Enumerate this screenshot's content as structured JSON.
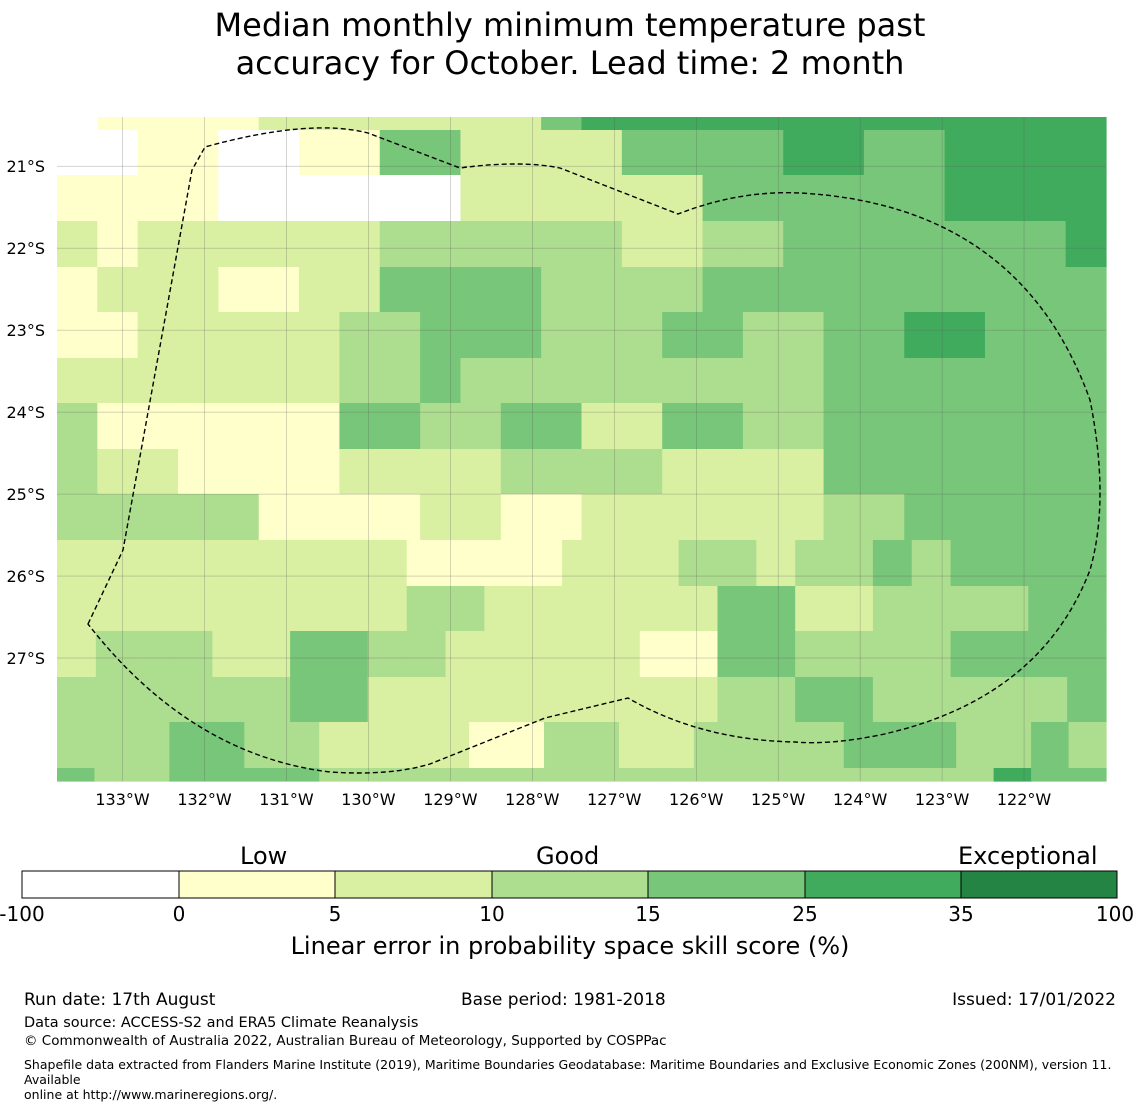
{
  "title": {
    "line1": "Median monthly minimum temperature past",
    "line2": "accuracy for October. Lead time: 2 month"
  },
  "map": {
    "lat_labels": [
      "21°S",
      "22°S",
      "23°S",
      "24°S",
      "25°S",
      "26°S",
      "27°S"
    ],
    "lon_labels": [
      "133°W",
      "132°W",
      "131°W",
      "130°W",
      "129°W",
      "128°W",
      "127°W",
      "126°W",
      "125°W",
      "124°W",
      "123°W",
      "122°W"
    ],
    "lon_range": [
      -133.8,
      -121.0
    ],
    "lat_range": [
      -28.5,
      -20.4
    ],
    "palette": [
      "#ffffff",
      "#ffffcc",
      "#d9f0a3",
      "#addd8e",
      "#78c679",
      "#41ab5d",
      "#238443"
    ],
    "cell_classes_note": "0:<0, 1:0-5, 2:5-10, 3:10-15, 4:15-25, 5:25-35, 6:35-100",
    "grid": [
      [
        9,
        1,
        1,
        1,
        1,
        2,
        2,
        2,
        2,
        2,
        2,
        2,
        4,
        5,
        5,
        5,
        5,
        5,
        5,
        5,
        5,
        5,
        5,
        5,
        5,
        5
      ],
      [
        0,
        0,
        1,
        1,
        0,
        0,
        1,
        1,
        4,
        4,
        2,
        2,
        2,
        2,
        4,
        4,
        4,
        4,
        5,
        5,
        4,
        4,
        5,
        5,
        5,
        5
      ],
      [
        1,
        1,
        1,
        1,
        0,
        0,
        0,
        0,
        0,
        0,
        2,
        2,
        2,
        2,
        2,
        2,
        4,
        4,
        4,
        4,
        4,
        4,
        5,
        5,
        5,
        5
      ],
      [
        2,
        1,
        2,
        2,
        2,
        2,
        2,
        2,
        3,
        3,
        3,
        3,
        3,
        3,
        2,
        2,
        3,
        3,
        4,
        4,
        4,
        4,
        4,
        4,
        4,
        5
      ],
      [
        1,
        2,
        2,
        2,
        1,
        1,
        2,
        2,
        4,
        4,
        4,
        4,
        3,
        3,
        3,
        3,
        4,
        4,
        4,
        4,
        4,
        4,
        4,
        4,
        4,
        4
      ],
      [
        1,
        1,
        2,
        2,
        2,
        2,
        2,
        3,
        3,
        4,
        4,
        4,
        3,
        3,
        3,
        4,
        4,
        3,
        3,
        4,
        4,
        5,
        5,
        4,
        4,
        4
      ],
      [
        2,
        2,
        2,
        2,
        2,
        2,
        2,
        3,
        3,
        4,
        3,
        3,
        3,
        3,
        3,
        3,
        3,
        3,
        3,
        4,
        4,
        4,
        4,
        4,
        4,
        4
      ],
      [
        3,
        1,
        1,
        1,
        1,
        1,
        1,
        4,
        4,
        3,
        3,
        4,
        4,
        2,
        2,
        4,
        4,
        3,
        3,
        4,
        4,
        4,
        4,
        4,
        4,
        4
      ],
      [
        3,
        2,
        2,
        1,
        1,
        1,
        1,
        2,
        2,
        2,
        2,
        3,
        3,
        3,
        3,
        2,
        2,
        2,
        2,
        4,
        4,
        4,
        4,
        4,
        4,
        4
      ],
      [
        3,
        3,
        3,
        3,
        3,
        1,
        1,
        1,
        1,
        2,
        2,
        1,
        1,
        2,
        2,
        2,
        2,
        2,
        2,
        3,
        3,
        4,
        4,
        4,
        4,
        4
      ],
      [
        2,
        2,
        2,
        2,
        2,
        2,
        2,
        2,
        2,
        1,
        1,
        1,
        1,
        2,
        2,
        2,
        3,
        3,
        2,
        3,
        3,
        4,
        3,
        4,
        4,
        4,
        4
      ],
      [
        2,
        2,
        2,
        2,
        2,
        2,
        2,
        2,
        2,
        3,
        3,
        2,
        2,
        2,
        2,
        2,
        2,
        4,
        4,
        2,
        2,
        3,
        3,
        3,
        3,
        4,
        4
      ],
      [
        2,
        3,
        3,
        3,
        2,
        2,
        4,
        4,
        3,
        3,
        2,
        2,
        2,
        2,
        2,
        1,
        1,
        4,
        4,
        3,
        3,
        3,
        3,
        4,
        4,
        4,
        4
      ],
      [
        3,
        3,
        3,
        3,
        3,
        3,
        4,
        4,
        2,
        2,
        2,
        2,
        2,
        2,
        2,
        2,
        2,
        3,
        3,
        4,
        4,
        3,
        3,
        3,
        3,
        3,
        4
      ],
      [
        3,
        3,
        3,
        4,
        4,
        3,
        3,
        2,
        2,
        2,
        2,
        1,
        1,
        3,
        3,
        2,
        2,
        3,
        3,
        3,
        3,
        4,
        4,
        4,
        3,
        3,
        4,
        3
      ],
      [
        4,
        3,
        3,
        4,
        4,
        4,
        4,
        3,
        3,
        3,
        3,
        3,
        3,
        3,
        3,
        3,
        3,
        3,
        3,
        3,
        3,
        3,
        3,
        3,
        3,
        5,
        4,
        4
      ]
    ]
  },
  "colorbar": {
    "categories": [
      "Low",
      "Good",
      "Exceptional"
    ],
    "ticks": [
      "-100",
      "0",
      "5",
      "10",
      "15",
      "25",
      "35",
      "100"
    ],
    "colors": [
      "#ffffff",
      "#ffffcc",
      "#d9f0a3",
      "#addd8e",
      "#78c679",
      "#41ab5d",
      "#238443"
    ],
    "label": "Linear error in probability space skill score (%)"
  },
  "footer": {
    "run_date": "Run date: 17th August",
    "base_period": "Base period: 1981-2018",
    "issued": "Issued: 17/01/2022",
    "data_source": "Data source: ACCESS-S2 and ERA5 Climate Reanalysis",
    "copyright": "© Commonwealth of Australia 2022, Australian Bureau of Meteorology, Supported by COSPPac",
    "shapefile_line1": "Shapefile data extracted from Flanders Marine Institute (2019), Maritime Boundaries Geodatabase: Maritime Boundaries and Exclusive Economic Zones (200NM), version 11. Available",
    "shapefile_line2": "online at http://www.marineregions.org/."
  }
}
